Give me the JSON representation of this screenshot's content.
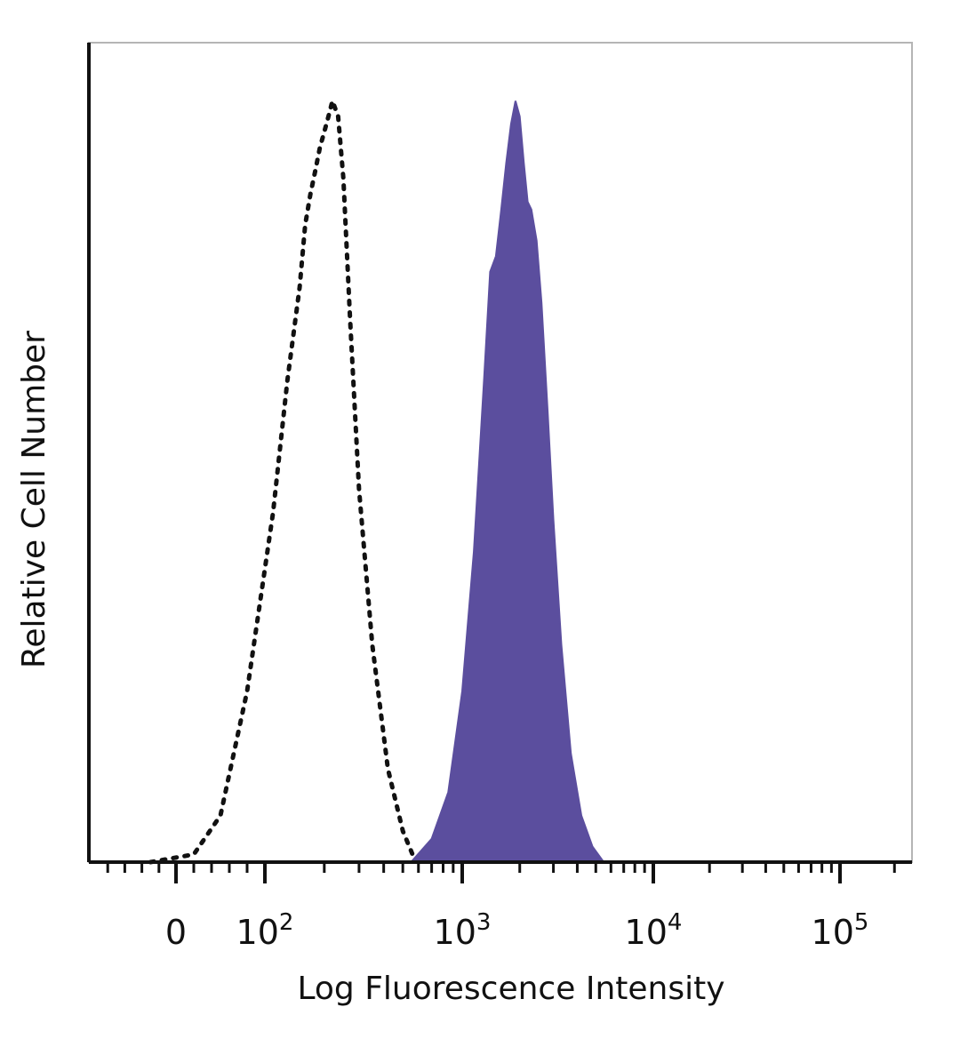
{
  "chart_data": {
    "type": "area",
    "xlabel": "Log Fluorescence Intensity",
    "ylabel": "Relative Cell Number",
    "x_scale": "biexponential",
    "xlim": [
      -100,
      250000
    ],
    "ylim": [
      0,
      100
    ],
    "grid": false,
    "x_ticks": [
      {
        "base": "0",
        "exp": "",
        "value": 0
      },
      {
        "base": "10",
        "exp": "2",
        "value": 100
      },
      {
        "base": "10",
        "exp": "3",
        "value": 1000
      },
      {
        "base": "10",
        "exp": "4",
        "value": 10000
      },
      {
        "base": "10",
        "exp": "5",
        "value": 100000
      }
    ],
    "series": [
      {
        "style": "dotted-outline",
        "color": "#111111",
        "x": [
          -30,
          20,
          50,
          80,
          110,
          130,
          150,
          160,
          170,
          180,
          190,
          200,
          210,
          220,
          235,
          250,
          270,
          300,
          350,
          420,
          500,
          560,
          620
        ],
        "y": [
          0,
          1,
          6,
          22,
          45,
          62,
          74,
          82,
          86,
          89,
          92,
          94,
          96,
          98,
          96,
          88,
          70,
          48,
          28,
          12,
          4,
          1,
          0
        ]
      },
      {
        "style": "filled",
        "color": "#5b4e9e",
        "x": [
          550,
          700,
          850,
          1000,
          1150,
          1300,
          1400,
          1500,
          1600,
          1700,
          1800,
          1900,
          2000,
          2100,
          2200,
          2300,
          2450,
          2600,
          2800,
          3000,
          3300,
          3700,
          4200,
          4800,
          5500
        ],
        "y": [
          0,
          3,
          9,
          22,
          40,
          62,
          76,
          78,
          84,
          90,
          95,
          98,
          96,
          90,
          85,
          84,
          80,
          72,
          58,
          44,
          28,
          14,
          6,
          2,
          0
        ]
      }
    ]
  }
}
